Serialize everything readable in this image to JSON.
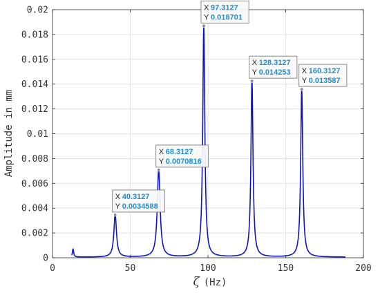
{
  "chart_data": {
    "type": "line",
    "xlabel_symbol": "ζ",
    "xlabel_unit": "(Hz)",
    "ylabel": "Amplitude in mm",
    "xlim": [
      0,
      200
    ],
    "ylim": [
      0,
      0.02
    ],
    "xticks": [
      0,
      50,
      100,
      150,
      200
    ],
    "xtick_labels": [
      "0",
      "50",
      "100",
      "150",
      "200"
    ],
    "yticks": [
      0,
      0.002,
      0.004,
      0.006,
      0.008,
      0.01,
      0.012,
      0.014,
      0.016,
      0.018,
      0.02
    ],
    "ytick_labels": [
      "0",
      "0.002",
      "0.004",
      "0.006",
      "0.008",
      "0.01",
      "0.012",
      "0.014",
      "0.016",
      "0.018",
      "0.02"
    ],
    "grid": true,
    "line_color": "#0d12c4",
    "x_range": [
      12.3,
      188.5
    ],
    "base": 5e-05,
    "small_peak": {
      "x": 13.2,
      "y": 0.0007
    },
    "peaks": [
      {
        "x": 40.3127,
        "y": 0.0034588,
        "x_label": "40.3127",
        "y_label": "0.0034588",
        "gamma": 1.0
      },
      {
        "x": 68.3127,
        "y": 0.0070816,
        "x_label": "68.3127",
        "y_label": "0.0070816",
        "gamma": 1.1
      },
      {
        "x": 97.3127,
        "y": 0.018701,
        "x_label": "97.3127",
        "y_label": "0.018701",
        "gamma": 0.8
      },
      {
        "x": 128.3127,
        "y": 0.014253,
        "x_label": "128.3127",
        "y_label": "0.014253",
        "gamma": 0.8
      },
      {
        "x": 160.3127,
        "y": 0.013587,
        "x_label": "160.3127",
        "y_label": "0.013587",
        "gamma": 0.8
      }
    ],
    "tooltip_key_x": "X",
    "tooltip_key_y": "Y",
    "tooltip_value_color": "#1a8fd6"
  }
}
